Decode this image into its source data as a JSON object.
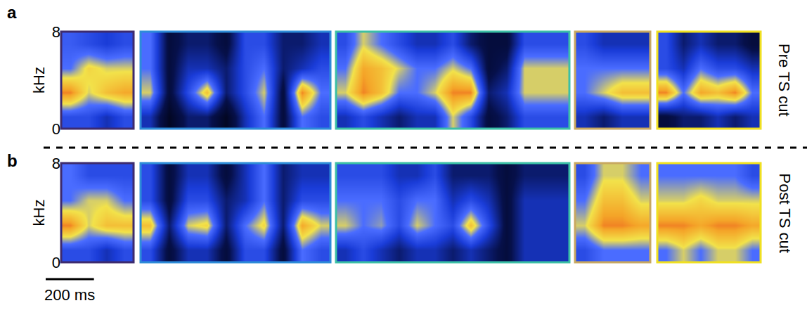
{
  "chart_data": [
    {
      "type": "heatmap",
      "panel": "a",
      "row_label": "Pre TS cut",
      "ylabel": "kHz",
      "ylim": [
        0,
        8
      ],
      "yticks": [
        0,
        8
      ],
      "zlim": [
        0,
        1
      ],
      "tick_labels": "y",
      "spectrograms": [
        {
          "color": "#3d2b6e",
          "xlim": [
            0,
            300
          ],
          "cells": [
            [
              0.5,
              0.5,
              0.4,
              0.5
            ],
            [
              0.9,
              0.7,
              0.8,
              0.85
            ],
            [
              0.6,
              0.75,
              0.7,
              0.7
            ],
            [
              0.55,
              0.5,
              0.45,
              0.5
            ]
          ]
        },
        {
          "color": "#2d8bd8",
          "xlim": [
            0,
            800
          ],
          "cells": [
            [
              0.4,
              0.1,
              0.3,
              0.3,
              0.1,
              0.4,
              0.6,
              0.2,
              0.6,
              0.5
            ],
            [
              0.7,
              0.2,
              0.5,
              0.8,
              0.3,
              0.5,
              0.7,
              0.2,
              0.9,
              0.6
            ],
            [
              0.6,
              0.2,
              0.4,
              0.4,
              0.3,
              0.5,
              0.6,
              0.3,
              0.4,
              0.5
            ],
            [
              0.6,
              0.2,
              0.3,
              0.3,
              0.2,
              0.5,
              0.5,
              0.3,
              0.3,
              0.4
            ]
          ]
        },
        {
          "color": "#3bbfa6",
          "xlim": [
            0,
            975
          ],
          "cells": [
            [
              0.4,
              0.5,
              0.4,
              0.3,
              0.4,
              0.4,
              0.7,
              0.5,
              0.2,
              0.3,
              0.5,
              0.5,
              0.5
            ],
            [
              0.7,
              0.9,
              0.8,
              0.6,
              0.6,
              0.7,
              0.9,
              0.9,
              0.3,
              0.4,
              0.7,
              0.7,
              0.7
            ],
            [
              0.6,
              0.85,
              0.8,
              0.7,
              0.6,
              0.6,
              0.7,
              0.6,
              0.2,
              0.3,
              0.7,
              0.7,
              0.7
            ],
            [
              0.5,
              0.7,
              0.6,
              0.5,
              0.4,
              0.4,
              0.5,
              0.3,
              0.2,
              0.2,
              0.5,
              0.5,
              0.5
            ]
          ]
        },
        {
          "color": "#c8a860",
          "xlim": [
            0,
            315
          ],
          "cells": [
            [
              0.4,
              0.3,
              0.4,
              0.4
            ],
            [
              0.6,
              0.7,
              0.8,
              0.8
            ],
            [
              0.6,
              0.6,
              0.6,
              0.6
            ],
            [
              0.5,
              0.4,
              0.4,
              0.4
            ]
          ]
        },
        {
          "color": "#f0e020",
          "xlim": [
            0,
            430
          ],
          "cells": [
            [
              0.2,
              0.3,
              0.3,
              0.4,
              0.3,
              0.4
            ],
            [
              0.9,
              0.6,
              0.85,
              0.8,
              0.9,
              0.6
            ],
            [
              0.5,
              0.4,
              0.6,
              0.5,
              0.5,
              0.4
            ],
            [
              0.5,
              0.3,
              0.4,
              0.3,
              0.3,
              0.2
            ]
          ]
        }
      ]
    },
    {
      "type": "heatmap",
      "panel": "b",
      "row_label": "Post TS cut",
      "ylabel": "kHz",
      "ylim": [
        0,
        8
      ],
      "yticks": [
        0,
        8
      ],
      "zlim": [
        0,
        1
      ],
      "tick_labels": "y",
      "scale_bar": {
        "value": 200,
        "label": "200 ms"
      },
      "spectrograms": [
        {
          "color": "#3d2b6e",
          "xlim": [
            0,
            300
          ],
          "cells": [
            [
              0.5,
              0.5,
              0.4,
              0.5
            ],
            [
              0.9,
              0.7,
              0.8,
              0.8
            ],
            [
              0.6,
              0.7,
              0.7,
              0.6
            ],
            [
              0.6,
              0.5,
              0.5,
              0.5
            ]
          ]
        },
        {
          "color": "#2d8bd8",
          "xlim": [
            0,
            800
          ],
          "cells": [
            [
              0.5,
              0.2,
              0.4,
              0.4,
              0.2,
              0.5,
              0.5,
              0.2,
              0.6,
              0.5
            ],
            [
              0.8,
              0.3,
              0.7,
              0.75,
              0.3,
              0.6,
              0.75,
              0.3,
              0.85,
              0.7
            ],
            [
              0.5,
              0.2,
              0.5,
              0.5,
              0.3,
              0.4,
              0.6,
              0.3,
              0.5,
              0.5
            ],
            [
              0.5,
              0.2,
              0.4,
              0.4,
              0.2,
              0.4,
              0.6,
              0.3,
              0.4,
              0.4
            ]
          ]
        },
        {
          "color": "#3bbfa6",
          "xlim": [
            0,
            975
          ],
          "cells": [
            [
              0.4,
              0.5,
              0.4,
              0.3,
              0.4,
              0.4,
              0.3,
              0.4,
              0.3,
              0.2,
              0.4,
              0.4,
              0.4
            ],
            [
              0.7,
              0.6,
              0.65,
              0.5,
              0.7,
              0.6,
              0.5,
              0.8,
              0.5,
              0.2,
              0.4,
              0.4,
              0.4
            ],
            [
              0.6,
              0.6,
              0.6,
              0.5,
              0.6,
              0.6,
              0.4,
              0.5,
              0.4,
              0.2,
              0.4,
              0.4,
              0.4
            ],
            [
              0.5,
              0.5,
              0.5,
              0.4,
              0.4,
              0.5,
              0.3,
              0.3,
              0.3,
              0.2,
              0.3,
              0.3,
              0.3
            ]
          ]
        },
        {
          "color": "#c8a860",
          "xlim": [
            0,
            315
          ],
          "cells": [
            [
              0.5,
              0.6,
              0.6,
              0.6
            ],
            [
              0.7,
              0.9,
              0.9,
              0.85
            ],
            [
              0.6,
              0.8,
              0.8,
              0.7
            ],
            [
              0.5,
              0.7,
              0.7,
              0.6
            ]
          ]
        },
        {
          "color": "#f0e020",
          "xlim": [
            0,
            430
          ],
          "cells": [
            [
              0.6,
              0.7,
              0.6,
              0.7,
              0.7,
              0.6
            ],
            [
              0.9,
              0.9,
              0.85,
              0.9,
              0.9,
              0.85
            ],
            [
              0.7,
              0.7,
              0.75,
              0.7,
              0.7,
              0.7
            ],
            [
              0.6,
              0.6,
              0.6,
              0.6,
              0.6,
              0.5
            ]
          ]
        }
      ]
    }
  ]
}
